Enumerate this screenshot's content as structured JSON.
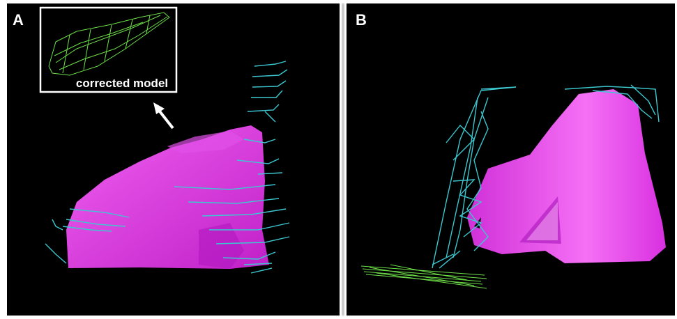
{
  "panels": [
    {
      "label": "A",
      "inset": {
        "caption": "corrected model"
      }
    },
    {
      "label": "B"
    }
  ]
}
